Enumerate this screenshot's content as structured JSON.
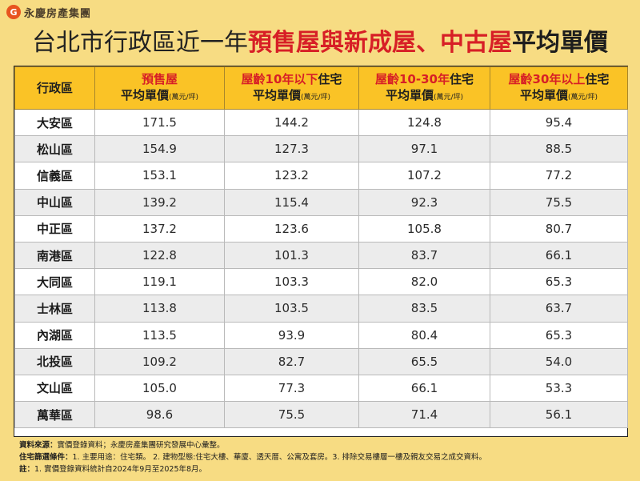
{
  "brand": {
    "logo_char": "G",
    "name": "永慶房產集團"
  },
  "title": {
    "part1": "台北市行政區近一年",
    "part2": "預售屋與新成屋、中古屋",
    "part3": "平均單價"
  },
  "table": {
    "headers": [
      {
        "line1": "行政區",
        "line1_red": "",
        "line1_after": "",
        "line2": "",
        "unit": ""
      },
      {
        "line1": "",
        "line1_red": "預售屋",
        "line1_after": "",
        "line2": "平均單價",
        "unit": "(萬元/坪)"
      },
      {
        "line1": "",
        "line1_red": "屋齡10年以下",
        "line1_after": "住宅",
        "line2": "平均單價",
        "unit": "(萬元/坪)"
      },
      {
        "line1": "",
        "line1_red": "屋齡10-30年",
        "line1_after": "住宅",
        "line2": "平均單價",
        "unit": "(萬元/坪)"
      },
      {
        "line1": "",
        "line1_red": "屋齡30年以上",
        "line1_after": "住宅",
        "line2": "平均單價",
        "unit": "(萬元/坪)"
      }
    ],
    "rows": [
      [
        "大安區",
        "171.5",
        "144.2",
        "124.8",
        "95.4"
      ],
      [
        "松山區",
        "154.9",
        "127.3",
        "97.1",
        "88.5"
      ],
      [
        "信義區",
        "153.1",
        "123.2",
        "107.2",
        "77.2"
      ],
      [
        "中山區",
        "139.2",
        "115.4",
        "92.3",
        "75.5"
      ],
      [
        "中正區",
        "137.2",
        "123.6",
        "105.8",
        "80.7"
      ],
      [
        "南港區",
        "122.8",
        "101.3",
        "83.7",
        "66.1"
      ],
      [
        "大同區",
        "119.1",
        "103.3",
        "82.0",
        "65.3"
      ],
      [
        "士林區",
        "113.8",
        "103.5",
        "83.5",
        "63.7"
      ],
      [
        "內湖區",
        "113.5",
        "93.9",
        "80.4",
        "65.3"
      ],
      [
        "北投區",
        "109.2",
        "82.7",
        "65.5",
        "54.0"
      ],
      [
        "文山區",
        "105.0",
        "77.3",
        "66.1",
        "53.3"
      ],
      [
        "萬華區",
        "98.6",
        "75.5",
        "71.4",
        "56.1"
      ]
    ]
  },
  "notes": [
    {
      "label": "資料來源：",
      "text": "實價登錄資料；永慶房產集團研究發展中心彙整。"
    },
    {
      "label": "住宅篩選條件：",
      "text": "1. 主要用途：住宅類。 2. 建物型態:住宅大樓、華廈、透天厝、公寓及套房。3. 排除交易樓層一樓及親友交易之成交資料。"
    },
    {
      "label": "註：",
      "text": "1. 實價登錄資料統計自2024年9月至2025年8月。"
    }
  ],
  "colors": {
    "background": "#f7dc83",
    "header": "#fac326",
    "highlight_red": "#d71f26",
    "row_shade": "#ececec"
  }
}
